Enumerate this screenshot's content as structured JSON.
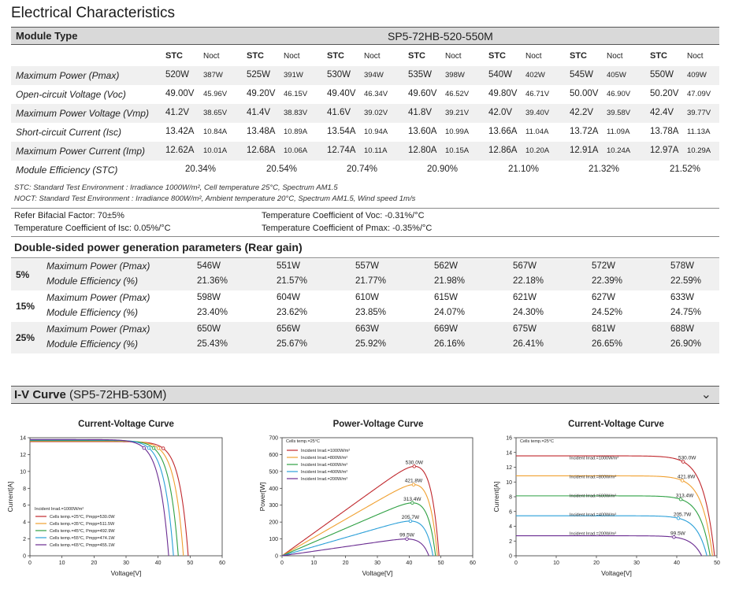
{
  "title": "Electrical Characteristics",
  "module_type_label": "Module Type",
  "module_type_value": "SP5-72HB-520-550M",
  "stc_label": "STC",
  "noct_label": "Noct",
  "rows": [
    {
      "label": "Maximum Power (Pmax)",
      "stc": [
        "520W",
        "525W",
        "530W",
        "535W",
        "540W",
        "545W",
        "550W"
      ],
      "noct": [
        "387W",
        "391W",
        "394W",
        "398W",
        "402W",
        "405W",
        "409W"
      ]
    },
    {
      "label": "Open-circuit Voltage (Voc)",
      "stc": [
        "49.00V",
        "49.20V",
        "49.40V",
        "49.60V",
        "49.80V",
        "50.00V",
        "50.20V"
      ],
      "noct": [
        "45.96V",
        "46.15V",
        "46.34V",
        "46.52V",
        "46.71V",
        "46.90V",
        "47.09V"
      ]
    },
    {
      "label": "Maximum Power Voltage (Vmp)",
      "stc": [
        "41.2V",
        "41.4V",
        "41.6V",
        "41.8V",
        "42.0V",
        "42.2V",
        "42.4V"
      ],
      "noct": [
        "38.65V",
        "38.83V",
        "39.02V",
        "39.21V",
        "39.40V",
        "39.58V",
        "39.77V"
      ]
    },
    {
      "label": "Short-circuit Current (Isc)",
      "stc": [
        "13.42A",
        "13.48A",
        "13.54A",
        "13.60A",
        "13.66A",
        "13.72A",
        "13.78A"
      ],
      "noct": [
        "10.84A",
        "10.89A",
        "10.94A",
        "10.99A",
        "11.04A",
        "11.09A",
        "11.13A"
      ]
    },
    {
      "label": "Maximum Power Current (Imp)",
      "stc": [
        "12.62A",
        "12.68A",
        "12.74A",
        "12.80A",
        "12.86A",
        "12.91A",
        "12.97A"
      ],
      "noct": [
        "10.01A",
        "10.06A",
        "10.11A",
        "10.15A",
        "10.20A",
        "10.24A",
        "10.29A"
      ]
    }
  ],
  "efficiency": {
    "label": "Module Efficiency (STC)",
    "values": [
      "20.34%",
      "20.54%",
      "20.74%",
      "20.90%",
      "21.10%",
      "21.32%",
      "21.52%"
    ]
  },
  "notes": [
    "STC: Standard Test Environment : Irradiance 1000W/m², Cell temperature 25°C, Spectrum AM1.5",
    "NOCT: Standard Test Environment : Irradiance 800W/m², Ambient temperature 20°C, Spectrum AM1.5, Wind speed 1m/s"
  ],
  "coefficients": {
    "bifacial": "Refer Bifacial Factor: 70±5%",
    "isc": "Temperature Coefficient of Isc: 0.05%/°C",
    "voc": "Temperature Coefficient of Voc: -0.31%/°C",
    "pmax": "Temperature Coefficient of Pmax: -0.35%/°C"
  },
  "double_sided": {
    "title": "Double-sided power generation parameters (Rear gain)",
    "power_label": "Maximum Power (Pmax)",
    "eff_label": "Module Efficiency (%)",
    "groups": [
      {
        "gain": "5%",
        "power": [
          "546W",
          "551W",
          "557W",
          "562W",
          "567W",
          "572W",
          "578W"
        ],
        "eff": [
          "21.36%",
          "21.57%",
          "21.77%",
          "21.98%",
          "22.18%",
          "22.39%",
          "22.59%"
        ]
      },
      {
        "gain": "15%",
        "power": [
          "598W",
          "604W",
          "610W",
          "615W",
          "621W",
          "627W",
          "633W"
        ],
        "eff": [
          "23.40%",
          "23.62%",
          "23.85%",
          "24.07%",
          "24.30%",
          "24.52%",
          "24.75%"
        ]
      },
      {
        "gain": "25%",
        "power": [
          "650W",
          "656W",
          "663W",
          "669W",
          "675W",
          "681W",
          "688W"
        ],
        "eff": [
          "25.43%",
          "25.67%",
          "25.92%",
          "26.16%",
          "26.41%",
          "26.65%",
          "26.90%"
        ]
      }
    ]
  },
  "iv_section": {
    "title_bold": "I-V Curve",
    "title_model": " (SP5-72HB-530M)",
    "chevron": "⌄"
  },
  "chart_data": [
    {
      "type": "line",
      "title": "Current-Voltage Curve",
      "xlabel": "Voltage[V]",
      "ylabel": "Current[A]",
      "xlim": [
        0,
        60
      ],
      "ylim": [
        0,
        14
      ],
      "xticks": [
        0,
        10,
        20,
        30,
        40,
        50,
        60
      ],
      "yticks": [
        0,
        2,
        4,
        6,
        8,
        10,
        12,
        14
      ],
      "legend_title": "Incident Irrad.=1000W/m²",
      "legend_position": "bottom-left",
      "series": [
        {
          "name": "Cells temp.=25°C, Pmpp=530.0W",
          "color": "#c0282d",
          "isc": 13.54,
          "voc": 49.4,
          "vmp": 41.6,
          "imp": 12.74
        },
        {
          "name": "Cells temp.=35°C, Pmpp=511.5W",
          "color": "#f0a030",
          "isc": 13.6,
          "voc": 47.9,
          "vmp": 40.1,
          "imp": 12.76
        },
        {
          "name": "Cells temp.=45°C, Pmpp=492.9W",
          "color": "#2ea043",
          "isc": 13.66,
          "voc": 46.3,
          "vmp": 38.6,
          "imp": 12.77
        },
        {
          "name": "Cells temp.=55°C, Pmpp=474.1W",
          "color": "#2a9fd8",
          "isc": 13.72,
          "voc": 44.8,
          "vmp": 37.1,
          "imp": 12.78
        },
        {
          "name": "Cells temp.=65°C, Pmpp=455.1W",
          "color": "#6a2c91",
          "isc": 13.78,
          "voc": 43.3,
          "vmp": 35.6,
          "imp": 12.78
        }
      ]
    },
    {
      "type": "line",
      "title": "Power-Voltage Curve",
      "xlabel": "Voltage[V]",
      "ylabel": "Power[W]",
      "xlim": [
        0,
        60
      ],
      "ylim": [
        0,
        700
      ],
      "xticks": [
        0,
        10,
        20,
        30,
        40,
        50,
        60
      ],
      "yticks": [
        0,
        100,
        200,
        300,
        400,
        500,
        600,
        700
      ],
      "legend_title": "Cells temp.=25°C",
      "legend_position": "top-left",
      "series": [
        {
          "name": "Incident Irrad.=1000W/m²",
          "color": "#c0282d",
          "isc": 13.54,
          "voc": 49.4,
          "vmp": 41.6,
          "imp": 12.74,
          "pmax_label": "530.0W"
        },
        {
          "name": "Incident Irrad.=800W/m²",
          "color": "#f0a030",
          "isc": 10.83,
          "voc": 48.9,
          "vmp": 41.4,
          "imp": 10.19,
          "pmax_label": "421.8W"
        },
        {
          "name": "Incident Irrad.=600W/m²",
          "color": "#2ea043",
          "isc": 8.12,
          "voc": 48.3,
          "vmp": 41.0,
          "imp": 7.65,
          "pmax_label": "313.4W"
        },
        {
          "name": "Incident Irrad.=400W/m²",
          "color": "#2a9fd8",
          "isc": 5.42,
          "voc": 47.5,
          "vmp": 40.4,
          "imp": 5.09,
          "pmax_label": "205.7W"
        },
        {
          "name": "Incident Irrad.=200W/m²",
          "color": "#6a2c91",
          "isc": 2.71,
          "voc": 46.2,
          "vmp": 39.3,
          "imp": 2.53,
          "pmax_label": "99.5W"
        }
      ]
    },
    {
      "type": "line",
      "title": "Current-Voltage Curve",
      "xlabel": "Voltage[V]",
      "ylabel": "Current[A]",
      "xlim": [
        0,
        50
      ],
      "ylim": [
        0,
        16
      ],
      "xticks": [
        0,
        10,
        20,
        30,
        40,
        50
      ],
      "yticks": [
        0,
        2,
        4,
        6,
        8,
        10,
        12,
        14,
        16
      ],
      "legend_title": "Cells temp.=25°C",
      "legend_position": "top-left",
      "series": [
        {
          "name": "Incident Irrad.=1000W/m²",
          "color": "#c0282d",
          "isc": 13.54,
          "voc": 49.4,
          "vmp": 41.6,
          "imp": 12.74,
          "pmax_label": "530.0W"
        },
        {
          "name": "Incident Irrad.=800W/m²",
          "color": "#f0a030",
          "isc": 10.83,
          "voc": 48.9,
          "vmp": 41.4,
          "imp": 10.19,
          "pmax_label": "421.8W"
        },
        {
          "name": "Incident Irrad.=600W/m²",
          "color": "#2ea043",
          "isc": 8.12,
          "voc": 48.3,
          "vmp": 41.0,
          "imp": 7.65,
          "pmax_label": "313.4W"
        },
        {
          "name": "Incident Irrad.=400W/m²",
          "color": "#2a9fd8",
          "isc": 5.42,
          "voc": 47.5,
          "vmp": 40.4,
          "imp": 5.09,
          "pmax_label": "205.7W"
        },
        {
          "name": "Incident Irrad.=200W/m²",
          "color": "#6a2c91",
          "isc": 2.71,
          "voc": 46.2,
          "vmp": 39.3,
          "imp": 2.53,
          "pmax_label": "99.5W"
        }
      ]
    }
  ]
}
